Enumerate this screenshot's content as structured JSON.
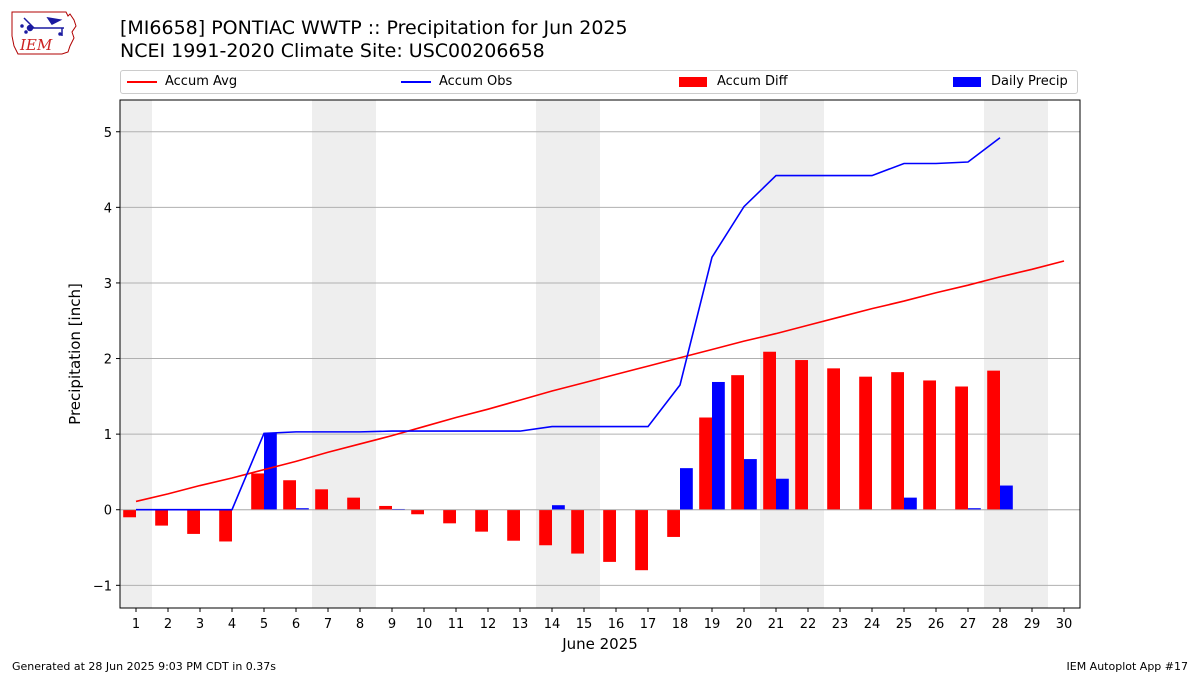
{
  "page": {
    "title_line1": "[MI6658] PONTIAC WWTP :: Precipitation for Jun 2025",
    "title_line2": "NCEI 1991-2020 Climate Site: USC00206658",
    "logo_text": "IEM",
    "footer_left": "Generated at 28 Jun 2025 9:03 PM CDT in 0.37s",
    "footer_right": "IEM Autoplot App #17"
  },
  "colors": {
    "accum_avg": "#ff0000",
    "accum_obs": "#0000ff",
    "accum_diff": "#ff0000",
    "daily_precip": "#0000ff",
    "weekend_band": "#eeeeee",
    "grid": "#b0b0b0"
  },
  "chart_data": {
    "type": "bar",
    "xlabel": "June 2025",
    "ylabel": "Precipitation [inch]",
    "xlim": [
      0.5,
      30.5
    ],
    "ylim": [
      -1.3,
      5.42
    ],
    "yticks": [
      -1,
      0,
      1,
      2,
      3,
      4,
      5
    ],
    "ytick_labels": [
      "−1",
      "0",
      "1",
      "2",
      "3",
      "4",
      "5"
    ],
    "xticks": [
      1,
      2,
      3,
      4,
      5,
      6,
      7,
      8,
      9,
      10,
      11,
      12,
      13,
      14,
      15,
      16,
      17,
      18,
      19,
      20,
      21,
      22,
      23,
      24,
      25,
      26,
      27,
      28,
      29,
      30
    ],
    "grid": "horizontal",
    "legend_position": "top",
    "legend": [
      "Accum Avg",
      "Accum Obs",
      "Accum Diff",
      "Daily Precip"
    ],
    "weekend_bands": [
      [
        0.5,
        1.5
      ],
      [
        6.5,
        8.5
      ],
      [
        13.5,
        15.5
      ],
      [
        20.5,
        22.5
      ],
      [
        27.5,
        29.5
      ]
    ],
    "days": [
      1,
      2,
      3,
      4,
      5,
      6,
      7,
      8,
      9,
      10,
      11,
      12,
      13,
      14,
      15,
      16,
      17,
      18,
      19,
      20,
      21,
      22,
      23,
      24,
      25,
      26,
      27,
      28,
      29,
      30
    ],
    "series": [
      {
        "name": "Accum Avg",
        "kind": "line",
        "values": [
          0.11,
          0.21,
          0.32,
          0.42,
          0.53,
          0.64,
          0.76,
          0.87,
          0.98,
          1.1,
          1.22,
          1.33,
          1.45,
          1.57,
          1.68,
          1.79,
          1.9,
          2.01,
          2.12,
          2.23,
          2.33,
          2.44,
          2.55,
          2.66,
          2.76,
          2.87,
          2.97,
          3.08,
          3.18,
          3.29
        ]
      },
      {
        "name": "Accum Obs",
        "kind": "line",
        "values": [
          0.0,
          0.0,
          0.0,
          0.0,
          1.01,
          1.03,
          1.03,
          1.03,
          1.04,
          1.04,
          1.04,
          1.04,
          1.04,
          1.1,
          1.1,
          1.1,
          1.1,
          1.65,
          3.34,
          4.01,
          4.42,
          4.42,
          4.42,
          4.42,
          4.58,
          4.58,
          4.6,
          4.92
        ]
      },
      {
        "name": "Accum Diff",
        "kind": "bar",
        "values": [
          -0.1,
          -0.21,
          -0.32,
          -0.42,
          0.48,
          0.39,
          0.27,
          0.16,
          0.05,
          -0.06,
          -0.18,
          -0.29,
          -0.41,
          -0.47,
          -0.58,
          -0.69,
          -0.8,
          -0.36,
          1.22,
          1.78,
          2.09,
          1.98,
          1.87,
          1.76,
          1.82,
          1.71,
          1.63,
          1.84
        ]
      },
      {
        "name": "Daily Precip",
        "kind": "bar",
        "values": [
          0.0,
          0.0,
          0.0,
          0.0,
          1.01,
          0.02,
          0.0,
          0.0,
          0.01,
          0.0,
          0.0,
          0.0,
          0.0,
          0.06,
          0.0,
          0.0,
          0.0,
          0.55,
          1.69,
          0.67,
          0.41,
          0.0,
          0.0,
          0.0,
          0.16,
          0.0,
          0.02,
          0.32
        ]
      }
    ]
  }
}
